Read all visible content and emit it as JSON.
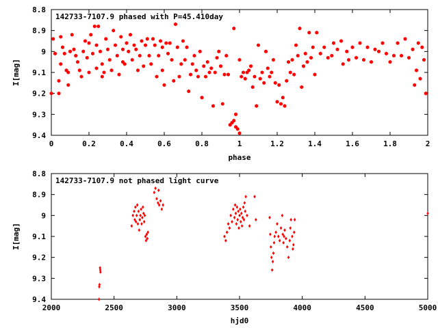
{
  "chart_data": [
    {
      "type": "scatter",
      "title": "142733-7107.9 phased with P=45.410day",
      "xlabel": "phase",
      "ylabel": "I[mag]",
      "xlim": [
        0,
        2
      ],
      "ylim": [
        9.4,
        8.8
      ],
      "y_inverted": true,
      "grid": false,
      "marker": "filled-hexagon",
      "color": "#ff0000",
      "xticks": [
        "0",
        "0.2",
        "0.4",
        "0.6",
        "0.8",
        "1",
        "1.2",
        "1.4",
        "1.6",
        "1.8",
        "2"
      ],
      "yticks": [
        "8.8",
        "8.9",
        "9",
        "9.1",
        "9.2",
        "9.3",
        "9.4"
      ],
      "points": [
        [
          0.0,
          9.2
        ],
        [
          0.01,
          8.94
        ],
        [
          0.02,
          9.01
        ],
        [
          0.04,
          9.14
        ],
        [
          0.04,
          9.2
        ],
        [
          0.05,
          8.93
        ],
        [
          0.05,
          9.06
        ],
        [
          0.06,
          8.98
        ],
        [
          0.07,
          9.01
        ],
        [
          0.08,
          9.09
        ],
        [
          0.09,
          9.16
        ],
        [
          0.09,
          9.1
        ],
        [
          0.1,
          9.0
        ],
        [
          0.11,
          8.92
        ],
        [
          0.12,
          8.99
        ],
        [
          0.13,
          9.02
        ],
        [
          0.14,
          9.05
        ],
        [
          0.15,
          9.09
        ],
        [
          0.16,
          9.12
        ],
        [
          0.17,
          9.0
        ],
        [
          0.18,
          8.95
        ],
        [
          0.19,
          9.03
        ],
        [
          0.2,
          9.1
        ],
        [
          0.2,
          8.96
        ],
        [
          0.21,
          8.92
        ],
        [
          0.22,
          9.01
        ],
        [
          0.23,
          8.88
        ],
        [
          0.24,
          8.97
        ],
        [
          0.24,
          9.08
        ],
        [
          0.25,
          8.88
        ],
        [
          0.26,
          9.0
        ],
        [
          0.27,
          9.06
        ],
        [
          0.27,
          9.12
        ],
        [
          0.28,
          9.1
        ],
        [
          0.29,
          8.94
        ],
        [
          0.3,
          8.99
        ],
        [
          0.31,
          9.04
        ],
        [
          0.32,
          9.09
        ],
        [
          0.33,
          8.9
        ],
        [
          0.34,
          8.97
        ],
        [
          0.35,
          9.02
        ],
        [
          0.36,
          9.11
        ],
        [
          0.37,
          8.93
        ],
        [
          0.38,
          9.05
        ],
        [
          0.38,
          8.99
        ],
        [
          0.39,
          9.06
        ],
        [
          0.4,
          8.96
        ],
        [
          0.41,
          9.0
        ],
        [
          0.42,
          8.92
        ],
        [
          0.43,
          9.04
        ],
        [
          0.44,
          8.97
        ],
        [
          0.45,
          8.99
        ],
        [
          0.46,
          9.09
        ],
        [
          0.47,
          9.02
        ],
        [
          0.48,
          8.95
        ],
        [
          0.49,
          9.07
        ],
        [
          0.5,
          8.97
        ],
        [
          0.51,
          8.94
        ],
        [
          0.52,
          9.02
        ],
        [
          0.53,
          9.06
        ],
        [
          0.54,
          8.94
        ],
        [
          0.55,
          8.97
        ],
        [
          0.56,
          9.12
        ],
        [
          0.57,
          9.02
        ],
        [
          0.58,
          8.95
        ],
        [
          0.59,
          8.98
        ],
        [
          0.59,
          9.09
        ],
        [
          0.6,
          9.16
        ],
        [
          0.61,
          8.96
        ],
        [
          0.62,
          9.01
        ],
        [
          0.63,
          8.96
        ],
        [
          0.64,
          9.04
        ],
        [
          0.65,
          9.14
        ],
        [
          0.66,
          8.87
        ],
        [
          0.67,
          8.98
        ],
        [
          0.68,
          9.12
        ],
        [
          0.69,
          9.06
        ],
        [
          0.7,
          8.95
        ],
        [
          0.71,
          9.04
        ],
        [
          0.72,
          8.98
        ],
        [
          0.73,
          9.19
        ],
        [
          0.74,
          9.11
        ],
        [
          0.75,
          9.06
        ],
        [
          0.76,
          9.02
        ],
        [
          0.77,
          9.09
        ],
        [
          0.78,
          9.12
        ],
        [
          0.79,
          9.0
        ],
        [
          0.8,
          9.22
        ],
        [
          0.81,
          9.07
        ],
        [
          0.82,
          9.12
        ],
        [
          0.83,
          9.05
        ],
        [
          0.84,
          9.1
        ],
        [
          0.85,
          9.08
        ],
        [
          0.86,
          9.26
        ],
        [
          0.87,
          9.1
        ],
        [
          0.88,
          9.03
        ],
        [
          0.89,
          9.0
        ],
        [
          0.9,
          9.07
        ],
        [
          0.91,
          9.25
        ],
        [
          0.92,
          9.11
        ],
        [
          0.93,
          9.02
        ],
        [
          0.94,
          9.11
        ],
        [
          0.95,
          9.35
        ],
        [
          0.96,
          9.34
        ],
        [
          0.97,
          9.33
        ],
        [
          0.97,
          8.89
        ],
        [
          0.98,
          9.3
        ],
        [
          0.98,
          9.36
        ],
        [
          0.99,
          9.37
        ],
        [
          1.0,
          9.39
        ],
        [
          1.0,
          9.04
        ],
        [
          1.01,
          9.12
        ],
        [
          1.02,
          9.1
        ],
        [
          1.03,
          9.13
        ],
        [
          1.04,
          9.1
        ],
        [
          1.05,
          9.09
        ],
        [
          1.06,
          9.07
        ],
        [
          1.07,
          9.17
        ],
        [
          1.08,
          9.12
        ],
        [
          1.09,
          9.26
        ],
        [
          1.1,
          8.97
        ],
        [
          1.11,
          9.13
        ],
        [
          1.12,
          9.1
        ],
        [
          1.13,
          9.15
        ],
        [
          1.14,
          9.0
        ],
        [
          1.15,
          9.08
        ],
        [
          1.16,
          9.12
        ],
        [
          1.17,
          9.1
        ],
        [
          1.18,
          9.04
        ],
        [
          1.19,
          9.15
        ],
        [
          1.2,
          9.24
        ],
        [
          1.21,
          9.16
        ],
        [
          1.22,
          9.25
        ],
        [
          1.23,
          9.22
        ],
        [
          1.24,
          9.26
        ],
        [
          1.25,
          9.14
        ],
        [
          1.26,
          9.05
        ],
        [
          1.27,
          9.1
        ],
        [
          1.28,
          9.04
        ],
        [
          1.29,
          9.11
        ],
        [
          1.3,
          8.97
        ],
        [
          1.31,
          9.02
        ],
        [
          1.32,
          8.89
        ],
        [
          1.33,
          9.17
        ],
        [
          1.34,
          9.07
        ],
        [
          1.35,
          9.01
        ],
        [
          1.36,
          9.05
        ],
        [
          1.37,
          8.91
        ],
        [
          1.38,
          9.03
        ],
        [
          1.39,
          8.98
        ],
        [
          1.4,
          9.11
        ],
        [
          1.41,
          8.91
        ],
        [
          1.43,
          9.01
        ],
        [
          1.45,
          8.98
        ],
        [
          1.47,
          9.03
        ],
        [
          1.49,
          9.02
        ],
        [
          1.5,
          8.96
        ],
        [
          1.52,
          8.99
        ],
        [
          1.54,
          8.95
        ],
        [
          1.55,
          9.06
        ],
        [
          1.57,
          9.0
        ],
        [
          1.58,
          9.04
        ],
        [
          1.6,
          8.98
        ],
        [
          1.62,
          9.03
        ],
        [
          1.64,
          8.96
        ],
        [
          1.66,
          9.04
        ],
        [
          1.68,
          8.98
        ],
        [
          1.7,
          9.05
        ],
        [
          1.72,
          8.99
        ],
        [
          1.74,
          9.0
        ],
        [
          1.76,
          8.96
        ],
        [
          1.78,
          9.01
        ],
        [
          1.8,
          9.05
        ],
        [
          1.82,
          9.02
        ],
        [
          1.84,
          8.96
        ],
        [
          1.86,
          9.02
        ],
        [
          1.88,
          8.94
        ],
        [
          1.9,
          9.03
        ],
        [
          1.92,
          8.99
        ],
        [
          1.93,
          9.16
        ],
        [
          1.94,
          9.09
        ],
        [
          1.95,
          8.96
        ],
        [
          1.96,
          9.13
        ],
        [
          1.97,
          8.98
        ],
        [
          1.98,
          9.04
        ],
        [
          1.99,
          9.2
        ]
      ]
    },
    {
      "type": "scatter",
      "title": "142733-7107.9 not phased light curve",
      "xlabel": "hjd0",
      "ylabel": "I[mag]",
      "xlim": [
        2000,
        5000
      ],
      "ylim": [
        9.4,
        8.8
      ],
      "y_inverted": true,
      "grid": false,
      "marker": "filled-diamond",
      "color": "#ff0000",
      "xticks": [
        "2000",
        "2500",
        "3000",
        "3500",
        "4000",
        "4500",
        "5000"
      ],
      "yticks": [
        "8.8",
        "8.9",
        "9",
        "9.1",
        "9.2",
        "9.3",
        "9.4"
      ],
      "points": [
        [
          2380,
          9.4
        ],
        [
          2382,
          9.34
        ],
        [
          2384,
          9.33
        ],
        [
          2388,
          9.25
        ],
        [
          2390,
          9.26
        ],
        [
          2392,
          9.27
        ],
        [
          2640,
          9.05
        ],
        [
          2650,
          9.0
        ],
        [
          2660,
          8.98
        ],
        [
          2665,
          9.02
        ],
        [
          2670,
          8.96
        ],
        [
          2675,
          9.03
        ],
        [
          2680,
          9.0
        ],
        [
          2685,
          8.95
        ],
        [
          2690,
          9.04
        ],
        [
          2695,
          8.98
        ],
        [
          2700,
          9.07
        ],
        [
          2705,
          9.02
        ],
        [
          2710,
          9.0
        ],
        [
          2715,
          8.97
        ],
        [
          2720,
          9.04
        ],
        [
          2725,
          9.01
        ],
        [
          2730,
          8.96
        ],
        [
          2735,
          8.99
        ],
        [
          2740,
          9.03
        ],
        [
          2745,
          9.0
        ],
        [
          2750,
          9.1
        ],
        [
          2755,
          9.12
        ],
        [
          2760,
          9.09
        ],
        [
          2765,
          9.11
        ],
        [
          2770,
          9.08
        ],
        [
          2820,
          8.89
        ],
        [
          2830,
          8.87
        ],
        [
          2840,
          8.92
        ],
        [
          2850,
          8.94
        ],
        [
          2855,
          8.88
        ],
        [
          2860,
          8.95
        ],
        [
          2870,
          8.93
        ],
        [
          2880,
          8.97
        ],
        [
          2890,
          8.95
        ],
        [
          3380,
          9.1
        ],
        [
          3390,
          9.12
        ],
        [
          3400,
          9.08
        ],
        [
          3410,
          9.04
        ],
        [
          3420,
          9.06
        ],
        [
          3430,
          9.0
        ],
        [
          3440,
          9.03
        ],
        [
          3450,
          8.97
        ],
        [
          3460,
          9.01
        ],
        [
          3465,
          8.95
        ],
        [
          3470,
          8.99
        ],
        [
          3475,
          9.04
        ],
        [
          3480,
          8.96
        ],
        [
          3485,
          9.02
        ],
        [
          3490,
          8.98
        ],
        [
          3495,
          9.06
        ],
        [
          3500,
          9.0
        ],
        [
          3505,
          8.97
        ],
        [
          3510,
          9.03
        ],
        [
          3515,
          8.99
        ],
        [
          3520,
          9.05
        ],
        [
          3525,
          9.01
        ],
        [
          3530,
          8.96
        ],
        [
          3535,
          9.02
        ],
        [
          3540,
          8.94
        ],
        [
          3545,
          8.98
        ],
        [
          3550,
          8.91
        ],
        [
          3560,
          9.0
        ],
        [
          3580,
          9.05
        ],
        [
          3620,
          8.91
        ],
        [
          3630,
          9.02
        ],
        [
          3740,
          9.01
        ],
        [
          3745,
          9.09
        ],
        [
          3750,
          9.15
        ],
        [
          3755,
          9.2
        ],
        [
          3760,
          9.26
        ],
        [
          3765,
          9.22
        ],
        [
          3770,
          9.18
        ],
        [
          3775,
          9.13
        ],
        [
          3780,
          9.1
        ],
        [
          3790,
          9.08
        ],
        [
          3800,
          9.04
        ],
        [
          3810,
          9.1
        ],
        [
          3820,
          9.12
        ],
        [
          3830,
          9.06
        ],
        [
          3840,
          9.0
        ],
        [
          3845,
          9.09
        ],
        [
          3850,
          9.13
        ],
        [
          3855,
          9.1
        ],
        [
          3860,
          9.07
        ],
        [
          3870,
          9.11
        ],
        [
          3880,
          9.15
        ],
        [
          3890,
          9.2
        ],
        [
          3900,
          9.12
        ],
        [
          3905,
          9.06
        ],
        [
          3910,
          9.02
        ],
        [
          3920,
          9.1
        ],
        [
          3925,
          9.16
        ],
        [
          3930,
          9.14
        ],
        [
          3935,
          9.08
        ],
        [
          3940,
          9.02
        ],
        [
          5000,
          8.99
        ]
      ]
    }
  ]
}
